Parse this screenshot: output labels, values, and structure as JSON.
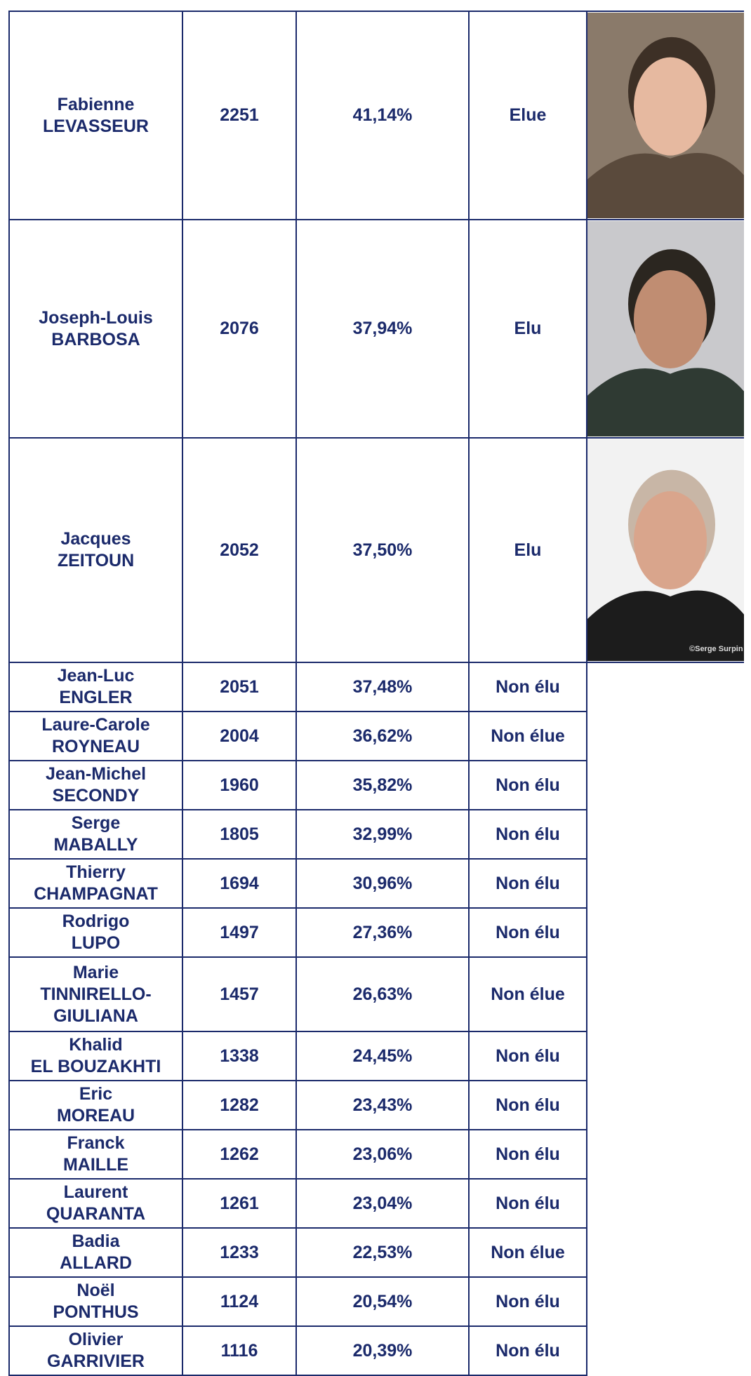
{
  "table": {
    "photo_credit": "©Serge Surpin",
    "rows": [
      {
        "first": "Fabienne",
        "last": "LEVASSEUR",
        "votes": "2251",
        "percent": "41,14%",
        "status": "Elue"
      },
      {
        "first": "Joseph-Louis",
        "last": "BARBOSA",
        "votes": "2076",
        "percent": "37,94%",
        "status": "Elu"
      },
      {
        "first": "Jacques",
        "last": "ZEITOUN",
        "votes": "2052",
        "percent": "37,50%",
        "status": "Elu"
      },
      {
        "first": "Jean-Luc",
        "last": "ENGLER",
        "votes": "2051",
        "percent": "37,48%",
        "status": "Non élu"
      },
      {
        "first": "Laure-Carole",
        "last": "ROYNEAU",
        "votes": "2004",
        "percent": "36,62%",
        "status": "Non élue"
      },
      {
        "first": "Jean-Michel",
        "last": "SECONDY",
        "votes": "1960",
        "percent": "35,82%",
        "status": "Non élu"
      },
      {
        "first": "Serge",
        "last": "MABALLY",
        "votes": "1805",
        "percent": "32,99%",
        "status": "Non élu"
      },
      {
        "first": "Thierry",
        "last": "CHAMPAGNAT",
        "votes": "1694",
        "percent": "30,96%",
        "status": "Non élu"
      },
      {
        "first": "Rodrigo",
        "last": "LUPO",
        "votes": "1497",
        "percent": "27,36%",
        "status": "Non élu"
      },
      {
        "first": "Marie",
        "last": "TINNIRELLO-GIULIANA",
        "votes": "1457",
        "percent": "26,63%",
        "status": "Non élue"
      },
      {
        "first": "Khalid",
        "last": "EL BOUZAKHTI",
        "votes": "1338",
        "percent": "24,45%",
        "status": "Non élu"
      },
      {
        "first": "Eric",
        "last": "MOREAU",
        "votes": "1282",
        "percent": "23,43%",
        "status": "Non élu"
      },
      {
        "first": "Franck",
        "last": "MAILLE",
        "votes": "1262",
        "percent": "23,06%",
        "status": "Non élu"
      },
      {
        "first": "Laurent",
        "last": "QUARANTA",
        "votes": "1261",
        "percent": "23,04%",
        "status": "Non élu"
      },
      {
        "first": "Badia",
        "last": "ALLARD",
        "votes": "1233",
        "percent": "22,53%",
        "status": "Non élue"
      },
      {
        "first": "Noël",
        "last": "PONTHUS",
        "votes": "1124",
        "percent": "20,54%",
        "status": "Non élu"
      },
      {
        "first": "Olivier",
        "last": "GARRIVIER",
        "votes": "1116",
        "percent": "20,39%",
        "status": "Non élu"
      }
    ]
  }
}
